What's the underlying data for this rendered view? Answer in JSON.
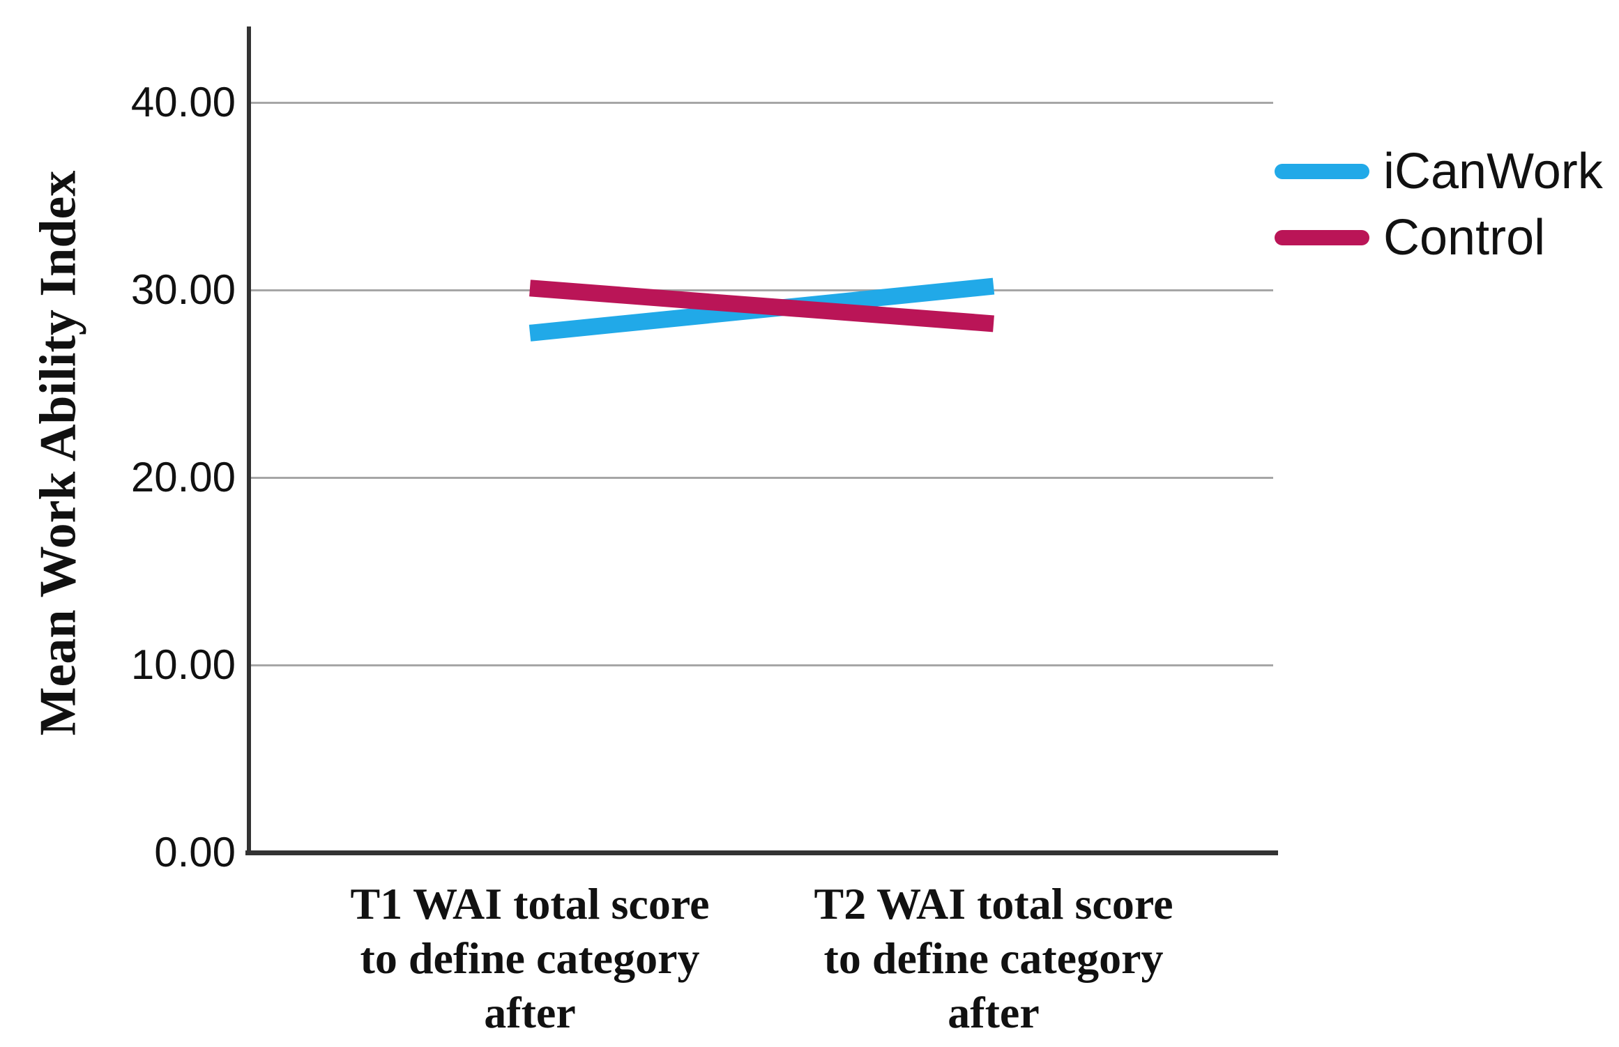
{
  "chart_data": {
    "type": "line",
    "title": "",
    "xlabel": "",
    "ylabel": "Mean Work Ability Index",
    "categories": [
      "T1 WAI total score to define category after",
      "T2 WAI total score to define category after"
    ],
    "category_lines": [
      [
        "T1 WAI total score",
        "to define category",
        "after"
      ],
      [
        "T2 WAI total score",
        "to define category",
        "after"
      ]
    ],
    "series": [
      {
        "name": "iCanWork",
        "color": "#21A9E8",
        "values": [
          27.7,
          30.2
        ]
      },
      {
        "name": "Control",
        "color": "#BA1557",
        "values": [
          30.1,
          28.2
        ]
      }
    ],
    "y_axis": {
      "min": 0,
      "max": 44,
      "ticks": [
        {
          "label": "0.00",
          "value": 0
        },
        {
          "label": "10.00",
          "value": 10
        },
        {
          "label": "20.00",
          "value": 20
        },
        {
          "label": "30.00",
          "value": 30
        },
        {
          "label": "40.00",
          "value": 40
        }
      ]
    },
    "grid": "horizontal",
    "legend_position": "right",
    "colors": {
      "gridline": "#A6A6A6",
      "axis": "#333333",
      "text": "#111111"
    }
  }
}
